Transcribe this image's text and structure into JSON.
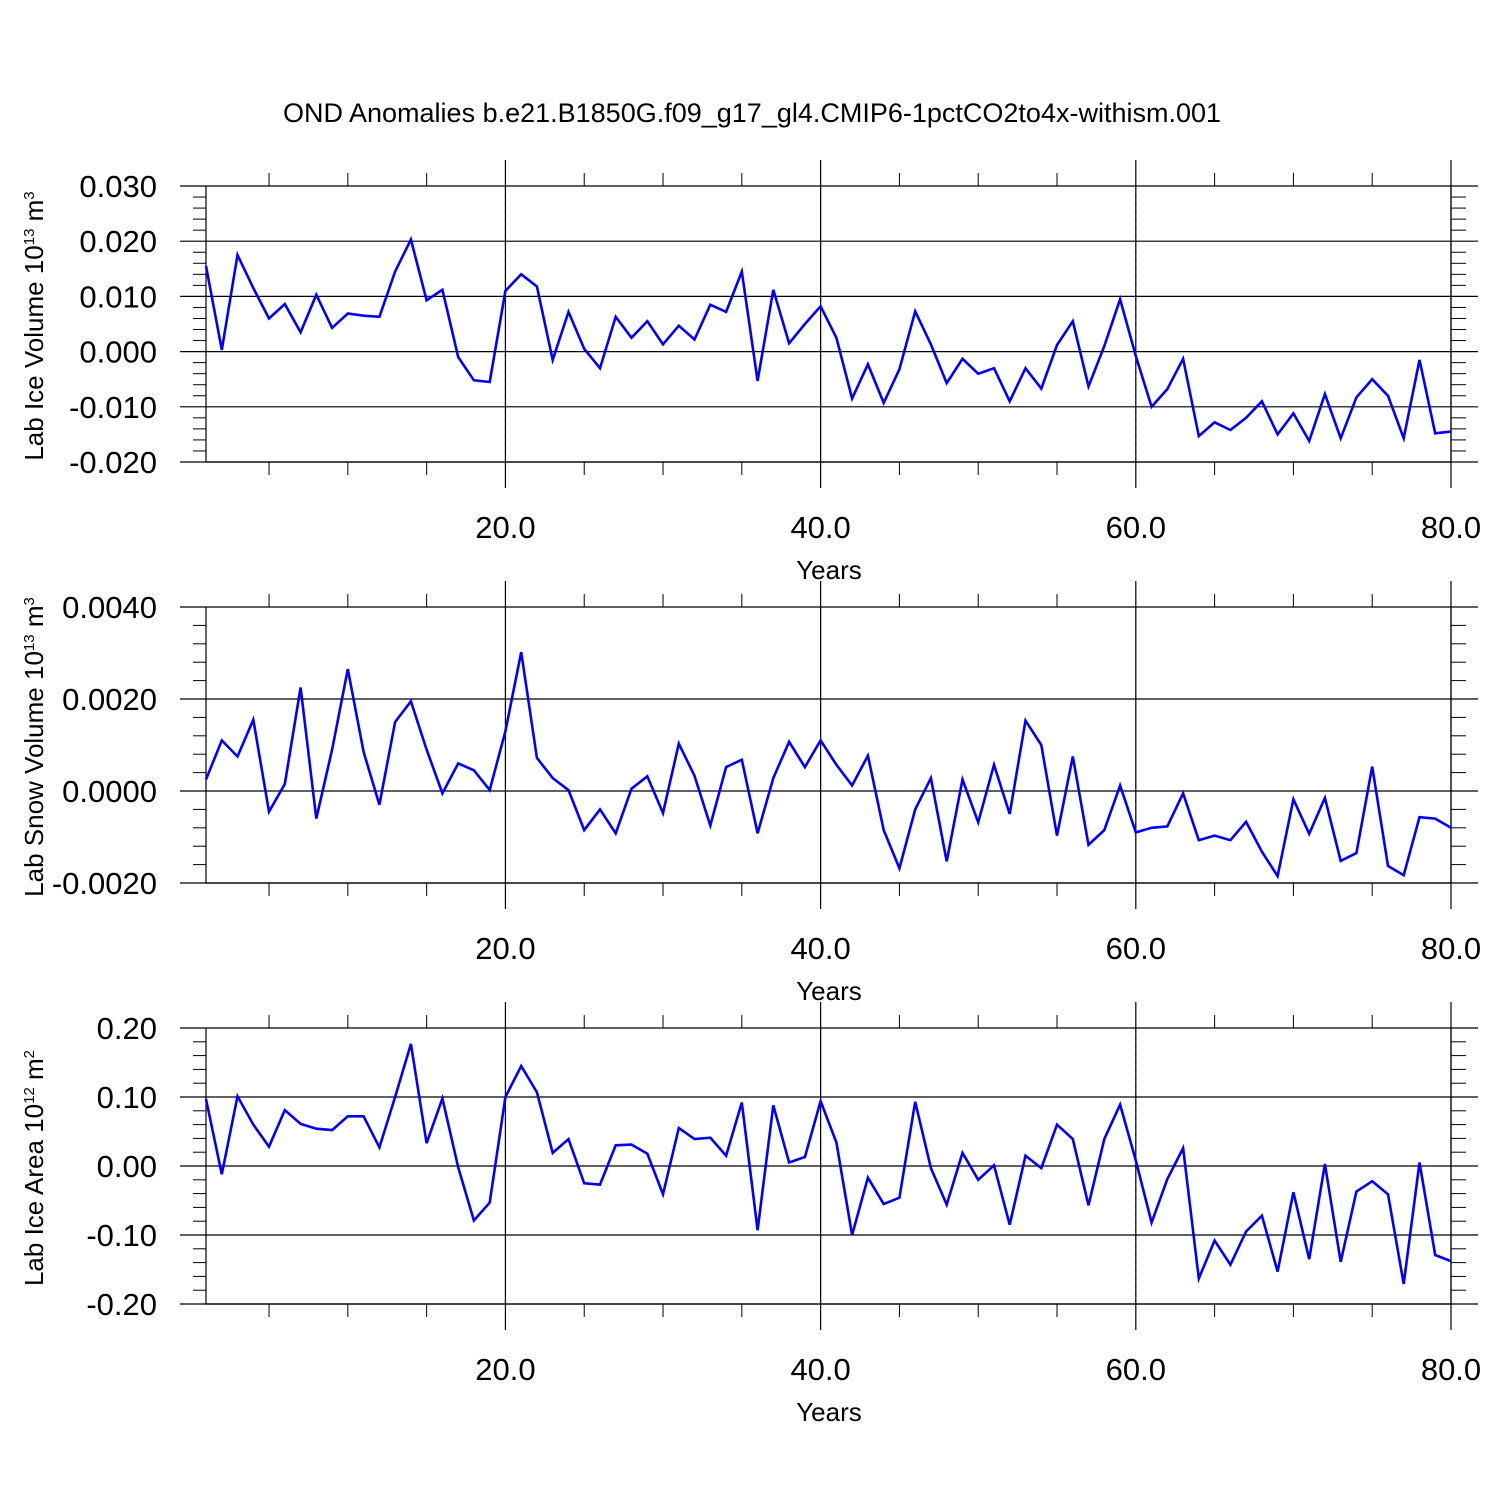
{
  "title": "OND Anomalies b.e21.B1850G.f09_g17_gl4.CMIP6-1pctCO2to4x-withism.001",
  "colors": {
    "line": "#0000ff",
    "axes": "#000000",
    "grid": "#888888"
  },
  "chart_data": [
    {
      "type": "line",
      "xlabel": "Years",
      "ylabel": {
        "main": "Lab Ice Volume 10",
        "sup1": "13",
        "mid": " m",
        "sup2": "3"
      },
      "xlim": [
        1,
        80
      ],
      "ylim": [
        -0.02,
        0.03
      ],
      "grid": "dashed vertical at major x ticks",
      "xticks": [
        20,
        40,
        60,
        80
      ],
      "xtick_labels": [
        "20.0",
        "40.0",
        "60.0",
        "80.0"
      ],
      "yticks": [
        -0.02,
        -0.01,
        0.0,
        0.01,
        0.02,
        0.03
      ],
      "ytick_labels": [
        "-0.020",
        "-0.010",
        "0.000",
        "0.010",
        "0.020",
        "0.030"
      ],
      "x": [
        1,
        2,
        3,
        4,
        5,
        6,
        7,
        8,
        9,
        10,
        11,
        12,
        13,
        14,
        15,
        16,
        17,
        18,
        19,
        20,
        21,
        22,
        23,
        24,
        25,
        26,
        27,
        28,
        29,
        30,
        31,
        32,
        33,
        34,
        35,
        36,
        37,
        38,
        39,
        40,
        41,
        42,
        43,
        44,
        45,
        46,
        47,
        48,
        49,
        50,
        51,
        52,
        53,
        54,
        55,
        56,
        57,
        58,
        59,
        60,
        61,
        62,
        63,
        64,
        65,
        66,
        67,
        68,
        69,
        70,
        71,
        72,
        73,
        74,
        75,
        76,
        77,
        78,
        79,
        80
      ],
      "values": [
        0.0155,
        0.0003,
        0.0175,
        0.0115,
        0.006,
        0.0086,
        0.0035,
        0.0103,
        0.0043,
        0.0069,
        0.0065,
        0.0063,
        0.0145,
        0.0203,
        0.0093,
        0.0112,
        -0.001,
        -0.0052,
        -0.0055,
        0.011,
        0.014,
        0.0118,
        -0.0015,
        0.0072,
        0.0005,
        -0.003,
        0.0063,
        0.0025,
        0.0055,
        0.0013,
        0.0047,
        0.0022,
        0.0085,
        0.0072,
        0.0145,
        -0.0053,
        0.0112,
        0.0015,
        0.005,
        0.0082,
        0.0025,
        -0.0085,
        -0.0023,
        -0.0093,
        -0.0032,
        0.0073,
        0.0013,
        -0.0057,
        -0.0013,
        -0.004,
        -0.003,
        -0.009,
        -0.003,
        -0.0067,
        0.0012,
        0.0055,
        -0.0063,
        0.001,
        0.0095,
        -0.0008,
        -0.01,
        -0.0068,
        -0.0013,
        -0.0153,
        -0.0128,
        -0.0142,
        -0.012,
        -0.009,
        -0.015,
        -0.0112,
        -0.0162,
        -0.0077,
        -0.0157,
        -0.0083,
        -0.005,
        -0.008,
        -0.0157,
        -0.0015,
        -0.0148,
        -0.0145
      ]
    },
    {
      "type": "line",
      "xlabel": "Years",
      "ylabel": {
        "main": "Lab Snow Volume 10",
        "sup1": "13",
        "mid": " m",
        "sup2": "3"
      },
      "xlim": [
        1,
        80
      ],
      "ylim": [
        -0.002,
        0.004
      ],
      "grid": "dashed vertical at major x ticks",
      "xticks": [
        20,
        40,
        60,
        80
      ],
      "xtick_labels": [
        "20.0",
        "40.0",
        "60.0",
        "80.0"
      ],
      "yticks": [
        -0.002,
        0.0,
        0.002,
        0.004
      ],
      "ytick_labels": [
        "-0.0020",
        "0.0000",
        "0.0020",
        "0.0040"
      ],
      "x": [
        1,
        2,
        3,
        4,
        5,
        6,
        7,
        8,
        9,
        10,
        11,
        12,
        13,
        14,
        15,
        16,
        17,
        18,
        19,
        20,
        21,
        22,
        23,
        24,
        25,
        26,
        27,
        28,
        29,
        30,
        31,
        32,
        33,
        34,
        35,
        36,
        37,
        38,
        39,
        40,
        41,
        42,
        43,
        44,
        45,
        46,
        47,
        48,
        49,
        50,
        51,
        52,
        53,
        54,
        55,
        56,
        57,
        58,
        59,
        60,
        61,
        62,
        63,
        64,
        65,
        66,
        67,
        68,
        69,
        70,
        71,
        72,
        73,
        74,
        75,
        76,
        77,
        78,
        79,
        80
      ],
      "values": [
        0.00025,
        0.0011,
        0.00075,
        0.00155,
        -0.00045,
        0.00015,
        0.00225,
        -0.0006,
        0.0009,
        0.00265,
        0.00085,
        -0.0003,
        0.0015,
        0.00195,
        0.0009,
        -5e-05,
        0.0006,
        0.00045,
        2e-05,
        0.0013,
        0.00302,
        0.00072,
        0.00028,
        2e-05,
        -0.00085,
        -0.0004,
        -0.00092,
        5e-05,
        0.00032,
        -0.00048,
        0.00103,
        0.00033,
        -0.00075,
        0.00052,
        0.00068,
        -0.00092,
        0.00028,
        0.00107,
        0.00052,
        0.0011,
        0.00057,
        0.00012,
        0.00077,
        -0.00085,
        -0.00168,
        -0.0004,
        0.00028,
        -0.00153,
        0.00025,
        -0.00068,
        0.00057,
        -0.0005,
        0.00153,
        0.001,
        -0.00097,
        0.00075,
        -0.00117,
        -0.00085,
        0.00012,
        -0.0009,
        -0.0008,
        -0.00077,
        -5e-05,
        -0.00107,
        -0.00097,
        -0.00107,
        -0.00067,
        -0.00132,
        -0.00185,
        -0.00018,
        -0.00093,
        -0.00015,
        -0.00152,
        -0.00135,
        0.00053,
        -0.00163,
        -0.00183,
        -0.00057,
        -0.0006,
        -0.0008
      ]
    },
    {
      "type": "line",
      "xlabel": "Years",
      "ylabel": {
        "main": "Lab Ice Area 10",
        "sup1": "12",
        "mid": " m",
        "sup2": "2"
      },
      "xlim": [
        1,
        80
      ],
      "ylim": [
        -0.2,
        0.2
      ],
      "grid": "dashed vertical at major x ticks",
      "xticks": [
        20,
        40,
        60,
        80
      ],
      "xtick_labels": [
        "20.0",
        "40.0",
        "60.0",
        "80.0"
      ],
      "yticks": [
        -0.2,
        -0.1,
        0.0,
        0.1,
        0.2
      ],
      "ytick_labels": [
        "-0.20",
        "-0.10",
        "0.00",
        "0.10",
        "0.20"
      ],
      "x": [
        1,
        2,
        3,
        4,
        5,
        6,
        7,
        8,
        9,
        10,
        11,
        12,
        13,
        14,
        15,
        16,
        17,
        18,
        19,
        20,
        21,
        22,
        23,
        24,
        25,
        26,
        27,
        28,
        29,
        30,
        31,
        32,
        33,
        34,
        35,
        36,
        37,
        38,
        39,
        40,
        41,
        42,
        43,
        44,
        45,
        46,
        47,
        48,
        49,
        50,
        51,
        52,
        53,
        54,
        55,
        56,
        57,
        58,
        59,
        60,
        61,
        62,
        63,
        64,
        65,
        66,
        67,
        68,
        69,
        70,
        71,
        72,
        73,
        74,
        75,
        76,
        77,
        78,
        79,
        80
      ],
      "values": [
        0.097,
        -0.012,
        0.101,
        0.06,
        0.028,
        0.081,
        0.061,
        0.054,
        0.052,
        0.072,
        0.072,
        0.027,
        0.1,
        0.177,
        0.033,
        0.098,
        -0.002,
        -0.079,
        -0.053,
        0.1,
        0.145,
        0.107,
        0.019,
        0.039,
        -0.025,
        -0.027,
        0.03,
        0.031,
        0.018,
        -0.041,
        0.055,
        0.039,
        0.041,
        0.015,
        0.092,
        -0.093,
        0.088,
        0.005,
        0.013,
        0.094,
        0.034,
        -0.1,
        -0.017,
        -0.055,
        -0.046,
        0.093,
        -0.003,
        -0.056,
        0.019,
        -0.02,
        0.001,
        -0.085,
        0.015,
        -0.003,
        0.06,
        0.039,
        -0.057,
        0.039,
        0.089,
        0.008,
        -0.082,
        -0.019,
        0.026,
        -0.163,
        -0.108,
        -0.143,
        -0.095,
        -0.072,
        -0.153,
        -0.038,
        -0.135,
        0.003,
        -0.139,
        -0.037,
        -0.022,
        -0.041,
        -0.171,
        0.005,
        -0.129,
        -0.138
      ]
    }
  ]
}
